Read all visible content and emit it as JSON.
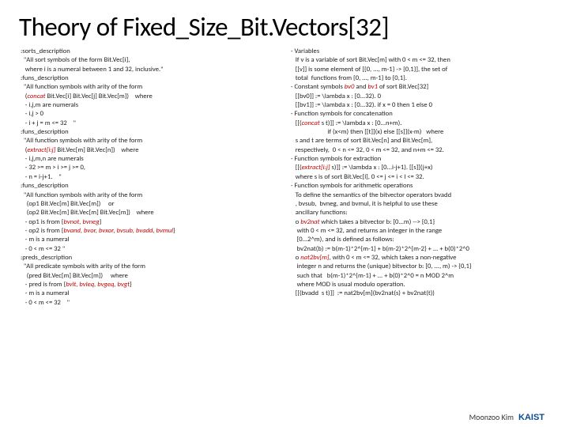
{
  "title": "Theory of Fixed_Size_Bit.Vectors[32]",
  "author": "Moonzoo Kim",
  "logo_top_color": "#0b4a8f",
  "logo_bottom_color": "#7fa7c9",
  "left": {
    "l0": " :sorts_description",
    "l1": "   \"All sort symbols of the form Bit.Vec[i],",
    "l2": "    where i is a numeral between 1 and 32, inclusive.\"",
    "l3": " :funs_description",
    "l4": "   \"All function symbols with arity of the form",
    "l5p": "    (",
    "l5r": "concat",
    "l5s": " Bit.Vec[i] Bit.Vec[j] Bit.Vec[m])    where",
    "l6": "    - i,j,m are numerals",
    "l7": "    - i,j > 0",
    "l8": "    - i + j = m <= 32    \"",
    "l9": " :funs_description",
    "l10": "   \"All function symbols with arity of the form",
    "l11p": "    (",
    "l11r": "extract[i:j]",
    "l11s": " Bit.Vec[m] Bit.Vec[n])    where",
    "l12": "    - i,j,m,n are numerals",
    "l13": "    - 32 >= m > i >= j >= 0,",
    "l14": "    - n = i-j+1.    \"",
    "l15": " :funs_description",
    "l16": "   \"All function symbols with arity of the form",
    "l17": "     (op1 Bit.Vec[m] Bit.Vec[m])     or",
    "l18": "     (op2 Bit.Vec[m] Bit.Vec[m] Bit.Vec[m])    where",
    "l19p": "    - op1 is from {",
    "l19r": "bvnot, bvneg",
    "l19s": "}",
    "l20p": "    - op2 is from {",
    "l20r": "bvand, bvor, bvxor, bvsub, bvadd, bvmul",
    "l20s": "}",
    "l21": "    - m is a numeral",
    "l22": "    - 0 < m <= 32 \"",
    "l23": " :preds_description",
    "l24": "   \"All predicate symbols with arity of the form",
    "l25": "     (pred Bit.Vec[m] Bit.Vec[m])     where",
    "l26p": "    - pred is from {",
    "l26r": "bvlt, bvleq, bvgeq, bvgt",
    "l26s": "}",
    "l27": "    - m is a numeral",
    "l28": "    - 0 < m <= 32    \""
  },
  "right": {
    "r0": "  - Variables",
    "r1": "     If v is a variable of sort Bit.Vec[m] with 0 < m <= 32, then",
    "r2": "     [[v]] is some element of [{0, ..., m-1} -> {0,1}], the set of",
    "r3": "     total  functions from {0, ..., m-1} to {0,1}.",
    "r4p": "  - Constant symbols ",
    "r4r1": "bv0",
    "r4m": " and ",
    "r4r2": "bv1",
    "r4s": " of sort Bit.Vec[32]",
    "r5": "     [[bv0]] := \\lambda x : [0...32). 0",
    "r6": "     [[bv1]] := \\lambda x : [0...32). if x = 0 then 1 else 0",
    "r7": "  - Function symbols for concatenation",
    "r8p": "     [[(",
    "r8r": "concat",
    "r8s": " s t)]] := \\lambda x : [0...n+m).",
    "r9": "                          if (x<m) then [[t]](x) else [[s]](x-m)   where",
    "r10": "     s and t are terms of sort Bit.Vec[n] and Bit.Vec[m],",
    "r11": "     respectively,  0 < n <= 32, 0 < m <= 32, and n+m <= 32.",
    "r12": "  - Function symbols for extraction",
    "r13p": "     [[(",
    "r13r": "extract[i:j]",
    "r13s": " s)]] := \\lambda x : [0...i-j+1). [[s]](j+x)",
    "r14": "     where s is of sort Bit.Vec[l], 0 <= j <= i < l <= 32.",
    "r15": "  - Function symbols for arithmetic operations",
    "r16": "     To define the semantics of the bitvector operators bvadd",
    "r17": "     , bvsub,  bvneg, and bvmul, it is helpful to use these",
    "r18": "     ancillary functions:",
    "r19p": "     o ",
    "r19r": "bv2nat",
    "r19s": " which takes a bitvector b: [0...m) --> {0,1}",
    "r20": "      with 0 < m <= 32, and returns an integer in the range",
    "r21": "      [0...2^m), and is defined as follows:",
    "r22": "      bv2nat(b) := b(m-1)*2^{m-1} + b(m-2)*2^{m-2} + ... + b(0)*2^0",
    "r23p": "     o ",
    "r23r": "nat2bv[m]",
    "r23s": ", with 0 < m <= 32, which takes a non-negative",
    "r24": "      integer n and returns the (unique) bitvector b: [0, ..., m) -> {0,1}",
    "r25": "      such that   b(m-1)*2^{m-1} + ... + b(0)*2^0 = n MOD 2^m",
    "r26": "      where MOD is usual modulo operation.",
    "r27": "     [[(bvadd  s t)]]  := nat2bv[m](bv2nat(s) + bv2nat(t))"
  }
}
